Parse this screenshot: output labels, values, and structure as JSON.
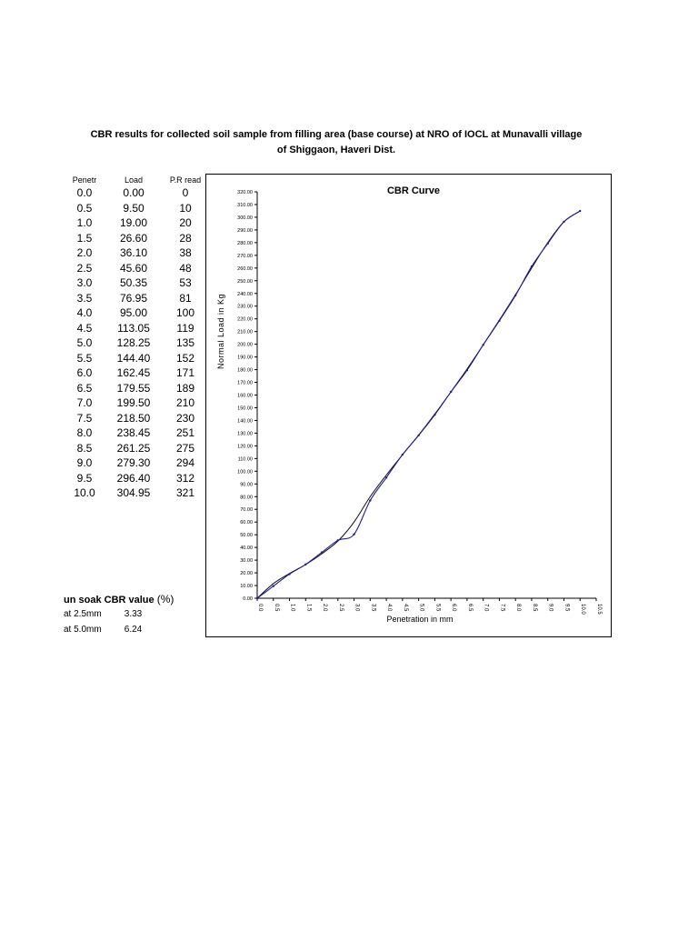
{
  "title_line1": "CBR results for collected soil sample from filling area (base course) at NRO of IOCL at Munavalli village",
  "title_line2": "of Shiggaon, Haveri Dist.",
  "table": {
    "headers": [
      "Penetr",
      "Load",
      "P.R read"
    ],
    "rows": [
      [
        "0.0",
        "0.00",
        "0"
      ],
      [
        "0.5",
        "9.50",
        "10"
      ],
      [
        "1.0",
        "19.00",
        "20"
      ],
      [
        "1.5",
        "26.60",
        "28"
      ],
      [
        "2.0",
        "36.10",
        "38"
      ],
      [
        "2.5",
        "45.60",
        "48"
      ],
      [
        "3.0",
        "50.35",
        "53"
      ],
      [
        "3.5",
        "76.95",
        "81"
      ],
      [
        "4.0",
        "95.00",
        "100"
      ],
      [
        "4.5",
        "113.05",
        "119"
      ],
      [
        "5.0",
        "128.25",
        "135"
      ],
      [
        "5.5",
        "144.40",
        "152"
      ],
      [
        "6.0",
        "162.45",
        "171"
      ],
      [
        "6.5",
        "179.55",
        "189"
      ],
      [
        "7.0",
        "199.50",
        "210"
      ],
      [
        "7.5",
        "218.50",
        "230"
      ],
      [
        "8.0",
        "238.45",
        "251"
      ],
      [
        "8.5",
        "261.25",
        "275"
      ],
      [
        "9.0",
        "279.30",
        "294"
      ],
      [
        "9.5",
        "296.40",
        "312"
      ],
      [
        "10.0",
        "304.95",
        "321"
      ]
    ]
  },
  "cbr": {
    "heading": "un soak CBR value",
    "unit": "(%)",
    "rows": [
      {
        "label": "at 2.5mm",
        "value": "3.33"
      },
      {
        "label": "at 5.0mm",
        "value": "6.24"
      }
    ]
  },
  "chart_data": {
    "type": "line",
    "title": "CBR Curve",
    "xlabel": "Penetration in mm",
    "ylabel": "Normal Load in Kg",
    "xlim": [
      0,
      10.5
    ],
    "ylim": [
      0,
      320
    ],
    "x_ticks": [
      "0.0",
      "0.5",
      "1.0",
      "1.5",
      "2.0",
      "2.5",
      "3.0",
      "3.5",
      "4.0",
      "4.5",
      "5.0",
      "5.5",
      "6.0",
      "6.5",
      "7.0",
      "7.5",
      "8.0",
      "8.5",
      "9.0",
      "9.5",
      "10.0",
      "10.5"
    ],
    "y_ticks": [
      "0.00",
      "10.00",
      "20.00",
      "30.00",
      "40.00",
      "50.00",
      "60.00",
      "70.00",
      "80.00",
      "90.00",
      "100.00",
      "110.00",
      "120.00",
      "130.00",
      "140.00",
      "150.00",
      "160.00",
      "170.00",
      "180.00",
      "190.00",
      "200.00",
      "210.00",
      "220.00",
      "230.00",
      "240.00",
      "250.00",
      "260.00",
      "270.00",
      "280.00",
      "290.00",
      "300.00",
      "310.00",
      "320.00"
    ],
    "grid": false,
    "x": [
      0.0,
      0.5,
      1.0,
      1.5,
      2.0,
      2.5,
      3.0,
      3.5,
      4.0,
      4.5,
      5.0,
      5.5,
      6.0,
      6.5,
      7.0,
      7.5,
      8.0,
      8.5,
      9.0,
      9.5,
      10.0
    ],
    "series": [
      {
        "values": [
          0.0,
          9.5,
          19.0,
          26.6,
          36.1,
          45.6,
          50.35,
          76.95,
          95.0,
          113.05,
          128.25,
          144.4,
          162.45,
          179.55,
          199.5,
          218.5,
          238.45,
          261.25,
          279.3,
          296.4,
          304.95
        ],
        "color": "#1f1f8f"
      },
      {
        "values": [
          0.0,
          11.5,
          19.5,
          26.5,
          35.0,
          45.0,
          60.0,
          80.0,
          97.0,
          113.0,
          128.5,
          145.0,
          162.5,
          180.5,
          199.5,
          219.0,
          239.0,
          260.0,
          280.0,
          296.5,
          304.95
        ],
        "color": "#111111"
      }
    ]
  }
}
